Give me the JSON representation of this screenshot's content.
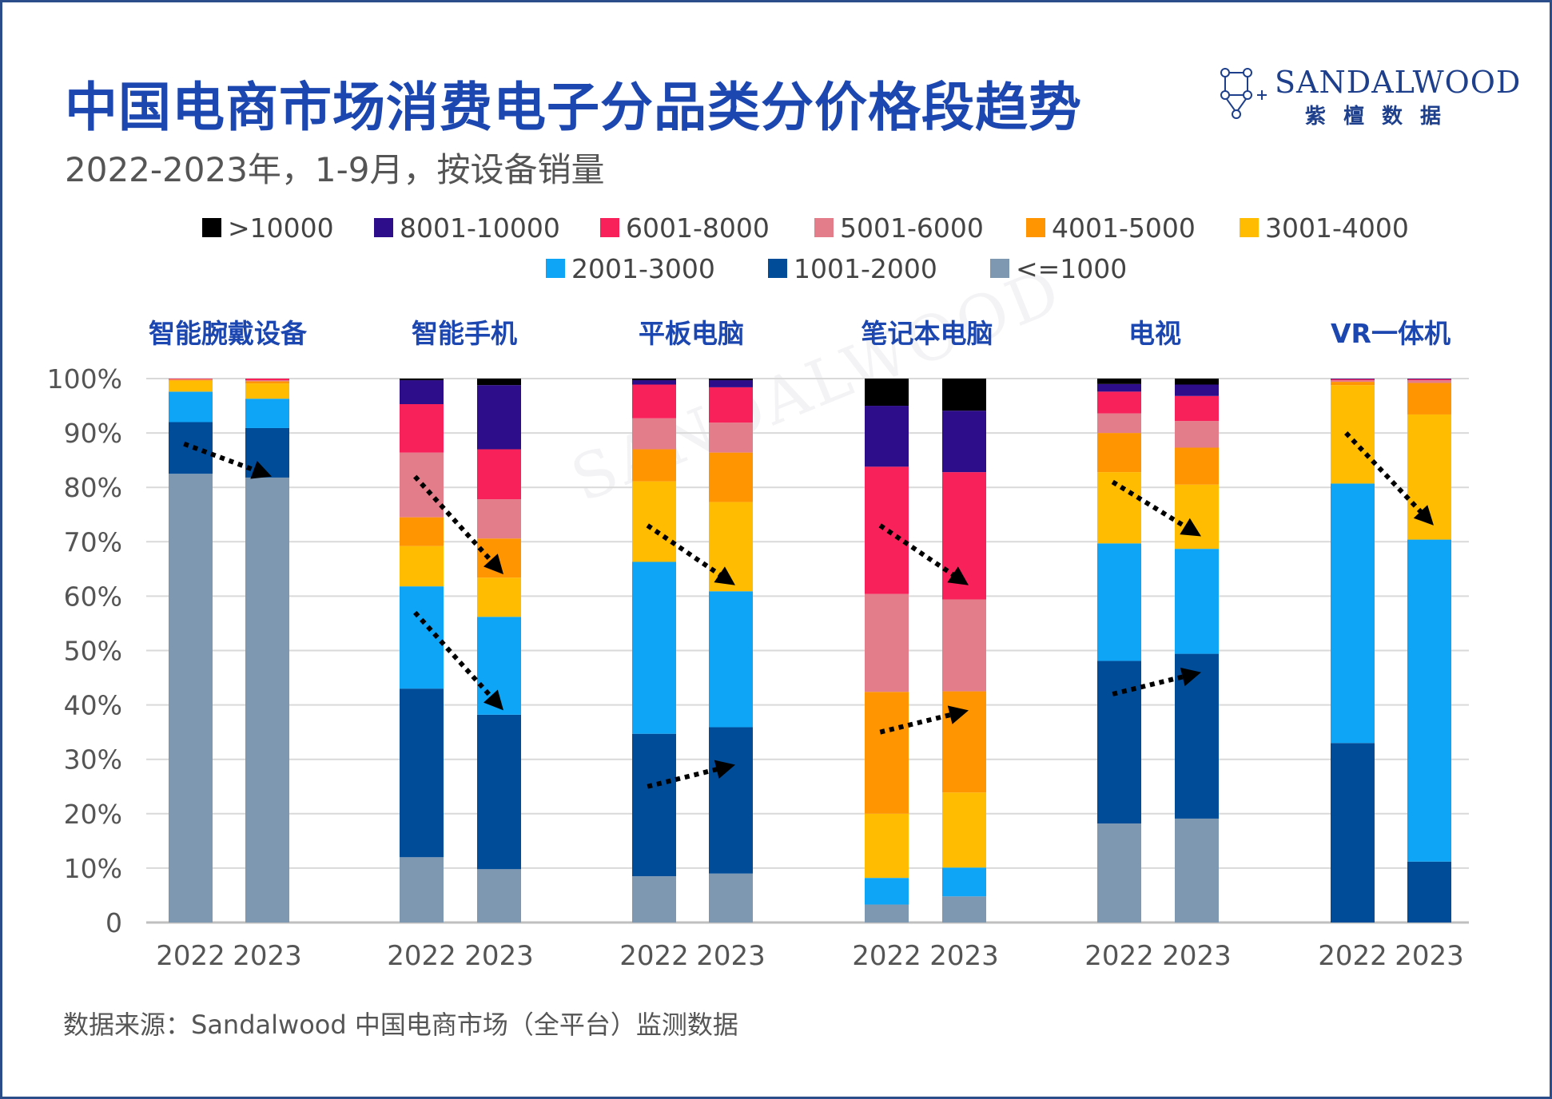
{
  "header": {
    "title": "中国电商市场消费电子分品类分价格段趋势",
    "subtitle": "2022-2023年，1-9月，按设备销量"
  },
  "logo": {
    "name": "SANDALWOOD",
    "cn": "紫檀数据"
  },
  "watermark": "SANDALWOOD",
  "source": "数据来源：Sandalwood 中国电商市场（全平台）监测数据",
  "chart_data": {
    "type": "bar",
    "stacked": true,
    "ylim": [
      0,
      100
    ],
    "yticks": [
      "0",
      "10%",
      "20%",
      "30%",
      "40%",
      "50%",
      "60%",
      "70%",
      "80%",
      "90%",
      "100%"
    ],
    "grid": true,
    "legend_position": "top",
    "years": [
      "2022",
      "2023"
    ],
    "series": [
      {
        "name": "<=1000",
        "color": "#7f98b2"
      },
      {
        "name": "1001-2000",
        "color": "#004c98"
      },
      {
        "name": "2001-3000",
        "color": "#0ea5f7"
      },
      {
        "name": "3001-4000",
        "color": "#ffbc00"
      },
      {
        "name": "4001-5000",
        "color": "#ff9500"
      },
      {
        "name": "5001-6000",
        "color": "#e47d8a"
      },
      {
        "name": "6001-8000",
        "color": "#f8215a"
      },
      {
        "name": "8001-10000",
        "color": "#2e0d8a"
      },
      {
        "name": ">10000",
        "color": "#000000"
      }
    ],
    "legend_order": [
      ">10000",
      "8001-10000",
      "6001-8000",
      "5001-6000",
      "4001-5000",
      "3001-4000",
      "2001-3000",
      "1001-2000",
      "<=1000"
    ],
    "groups": [
      {
        "category": "智能腕戴设备",
        "bars": [
          {
            "year": "2022",
            "values": [
              82.5,
              9.5,
              5.6,
              2.0,
              0.2,
              0.1,
              0.1,
              0,
              0
            ]
          },
          {
            "year": "2023",
            "values": [
              81.8,
              9.1,
              5.4,
              2.8,
              0.4,
              0.2,
              0.3,
              0,
              0
            ]
          }
        ],
        "arrows": [
          {
            "from": 88,
            "to": 82
          }
        ]
      },
      {
        "category": "智能手机",
        "bars": [
          {
            "year": "2022",
            "values": [
              12.0,
              31.0,
              18.8,
              7.4,
              5.3,
              11.9,
              8.9,
              4.4,
              0.3
            ]
          },
          {
            "year": "2023",
            "values": [
              9.8,
              28.4,
              18.0,
              7.2,
              7.2,
              7.2,
              9.2,
              11.8,
              1.2
            ]
          }
        ],
        "arrows": [
          {
            "from": 82,
            "to": 64
          },
          {
            "from": 57,
            "to": 39
          }
        ]
      },
      {
        "category": "平板电脑",
        "bars": [
          {
            "year": "2022",
            "values": [
              8.5,
              26.2,
              31.6,
              14.8,
              5.9,
              5.7,
              6.2,
              0.8,
              0.3
            ]
          },
          {
            "year": "2023",
            "values": [
              9.0,
              26.9,
              25.0,
              16.4,
              9.1,
              5.5,
              6.5,
              1.3,
              0.3
            ]
          }
        ],
        "arrows": [
          {
            "from": 73,
            "to": 62
          },
          {
            "from": 25,
            "to": 29
          }
        ]
      },
      {
        "category": "笔记本电脑",
        "bars": [
          {
            "year": "2022",
            "values": [
              3.3,
              0,
              4.9,
              11.8,
              22.4,
              18.0,
              23.4,
              11.2,
              5.0
            ]
          },
          {
            "year": "2023",
            "values": [
              4.8,
              0,
              5.3,
              13.8,
              18.6,
              16.9,
              23.4,
              11.3,
              5.9
            ]
          }
        ],
        "arrows": [
          {
            "from": 73,
            "to": 62
          },
          {
            "from": 35,
            "to": 39
          }
        ]
      },
      {
        "category": "电视",
        "bars": [
          {
            "year": "2022",
            "values": [
              18.2,
              29.9,
              21.6,
              13.1,
              7.2,
              3.6,
              4.0,
              1.4,
              1.0
            ]
          },
          {
            "year": "2023",
            "values": [
              19.1,
              30.3,
              19.3,
              11.8,
              6.8,
              4.9,
              4.6,
              2.1,
              1.1
            ]
          }
        ],
        "arrows": [
          {
            "from": 81,
            "to": 71
          },
          {
            "from": 42,
            "to": 46
          }
        ]
      },
      {
        "category": "VR一体机",
        "bars": [
          {
            "year": "2022",
            "values": [
              0,
              33.0,
              47.7,
              18.1,
              0.6,
              0.3,
              0.2,
              0.1,
              0
            ]
          },
          {
            "year": "2023",
            "values": [
              0,
              11.2,
              59.2,
              23.0,
              5.8,
              0.5,
              0.2,
              0.1,
              0
            ]
          }
        ],
        "arrows": [
          {
            "from": 90,
            "to": 73
          }
        ]
      }
    ]
  }
}
